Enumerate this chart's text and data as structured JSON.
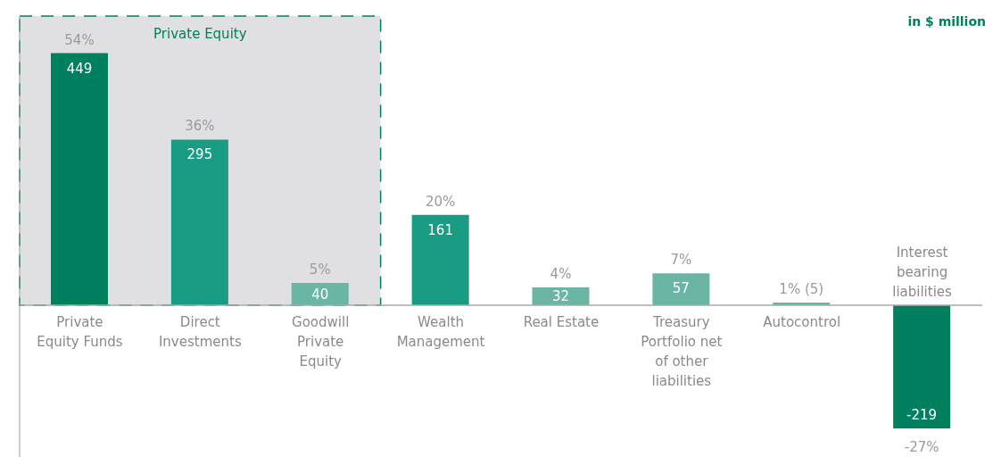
{
  "chart_data": {
    "type": "bar",
    "categories": [
      "Private Equity Funds",
      "Direct Investments",
      "Goodwill Private Equity",
      "Wealth Management",
      "Real Estate",
      "Treasury Portfolio net of other liabilities",
      "Autocontrol",
      "Interest bearing liabilities"
    ],
    "values": [
      449,
      295,
      40,
      161,
      32,
      57,
      5,
      -219
    ],
    "colors": [
      "#00805f",
      "#1a9b83",
      "#6bb5a5",
      "#1a9b83",
      "#6bb5a5",
      "#6bb5a5",
      "#6bb5a5",
      "#00805f"
    ],
    "value_labels": [
      "449",
      "295",
      "40",
      "161",
      "32",
      "57",
      null,
      "-219"
    ],
    "ylim": [
      -270,
      515
    ],
    "tick_labels": "x",
    "bands": [
      {
        "axis": "x",
        "from": "Private Equity Funds",
        "to": "Goodwill Private Equity",
        "label": "Private Equity",
        "color": "#e0e0e2"
      }
    ],
    "annotations": [
      "in $ million",
      {
        "text": "54%",
        "x": "Private Equity Funds",
        "y": 449
      },
      {
        "text": "36%",
        "x": "Direct Investments",
        "y": 295
      },
      {
        "text": "5%",
        "x": "Goodwill Private Equity",
        "y": 40
      },
      {
        "text": "20%",
        "x": "Wealth Management",
        "y": 161
      },
      {
        "text": "4%",
        "x": "Real Estate",
        "y": 32
      },
      {
        "text": "7%",
        "x": "Treasury Portfolio net of other liabilities",
        "y": 57
      },
      {
        "text": "1% (5)",
        "x": "Autocontrol",
        "y": 5
      },
      {
        "text": "-27%",
        "x": "Interest bearing liabilities",
        "y": -219
      }
    ]
  }
}
